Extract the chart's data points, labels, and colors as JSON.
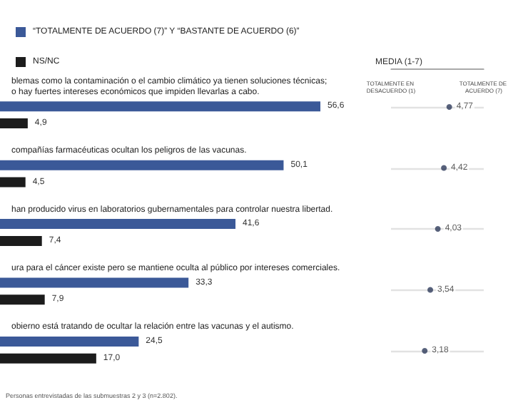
{
  "chart_data": [
    {
      "type": "bar",
      "orientation": "horizontal",
      "legend": "top left",
      "categories": [
        "blemas como la contaminación o el cambio climático ya tienen soluciones técnicas;\no hay fuertes intereses económicos que impiden llevarlas a cabo.",
        "compañías farmacéuticas ocultan los peligros de las vacunas.",
        "han producido virus en laboratorios gubernamentales para controlar nuestra libertad.",
        "ura para el cáncer existe pero se mantiene oculta al público por intereses comerciales.",
        "obierno está tratando de ocultar la relación entre las vacunas y el autismo."
      ],
      "series": [
        {
          "name": "“TOTALMENTE DE ACUERDO (7)” Y “BASTANTE DE ACUERDO (6)”",
          "color": "#3b5998",
          "values": [
            56.6,
            50.1,
            41.6,
            33.3,
            24.5
          ],
          "value_labels": [
            "56,6",
            "50,1",
            "41,6",
            "33,3",
            "24,5"
          ]
        },
        {
          "name": "NS/NC",
          "color": "#1c1c1c",
          "values": [
            4.9,
            4.5,
            7.4,
            7.9,
            17.0
          ],
          "value_labels": [
            "4,9",
            "4,5",
            "7,4",
            "7,9",
            "17,0"
          ]
        }
      ],
      "annotations": [
        "Personas entrevistadas de las submuestras 2 y 3 (n=2.802)."
      ]
    },
    {
      "type": "scatter",
      "orientation": "horizontal",
      "title": "MEDIA (1-7)",
      "categories": [
        null,
        null,
        null,
        null,
        null
      ],
      "values": [
        4.77,
        4.42,
        4.03,
        3.54,
        3.18
      ],
      "value_labels": [
        "4,77",
        "4,42",
        "4,03",
        "3,54",
        "3,18"
      ],
      "color": "#2d3a5a",
      "marker": "circle",
      "grid": "y",
      "xlim": [
        1,
        7
      ],
      "xticks": [
        {
          "value": 1,
          "label": "TOTALMENTE EN DESACUERDO (1)"
        },
        {
          "value": 7,
          "label": "TOTALMENTE DE ACUERDO (7)"
        }
      ]
    }
  ]
}
